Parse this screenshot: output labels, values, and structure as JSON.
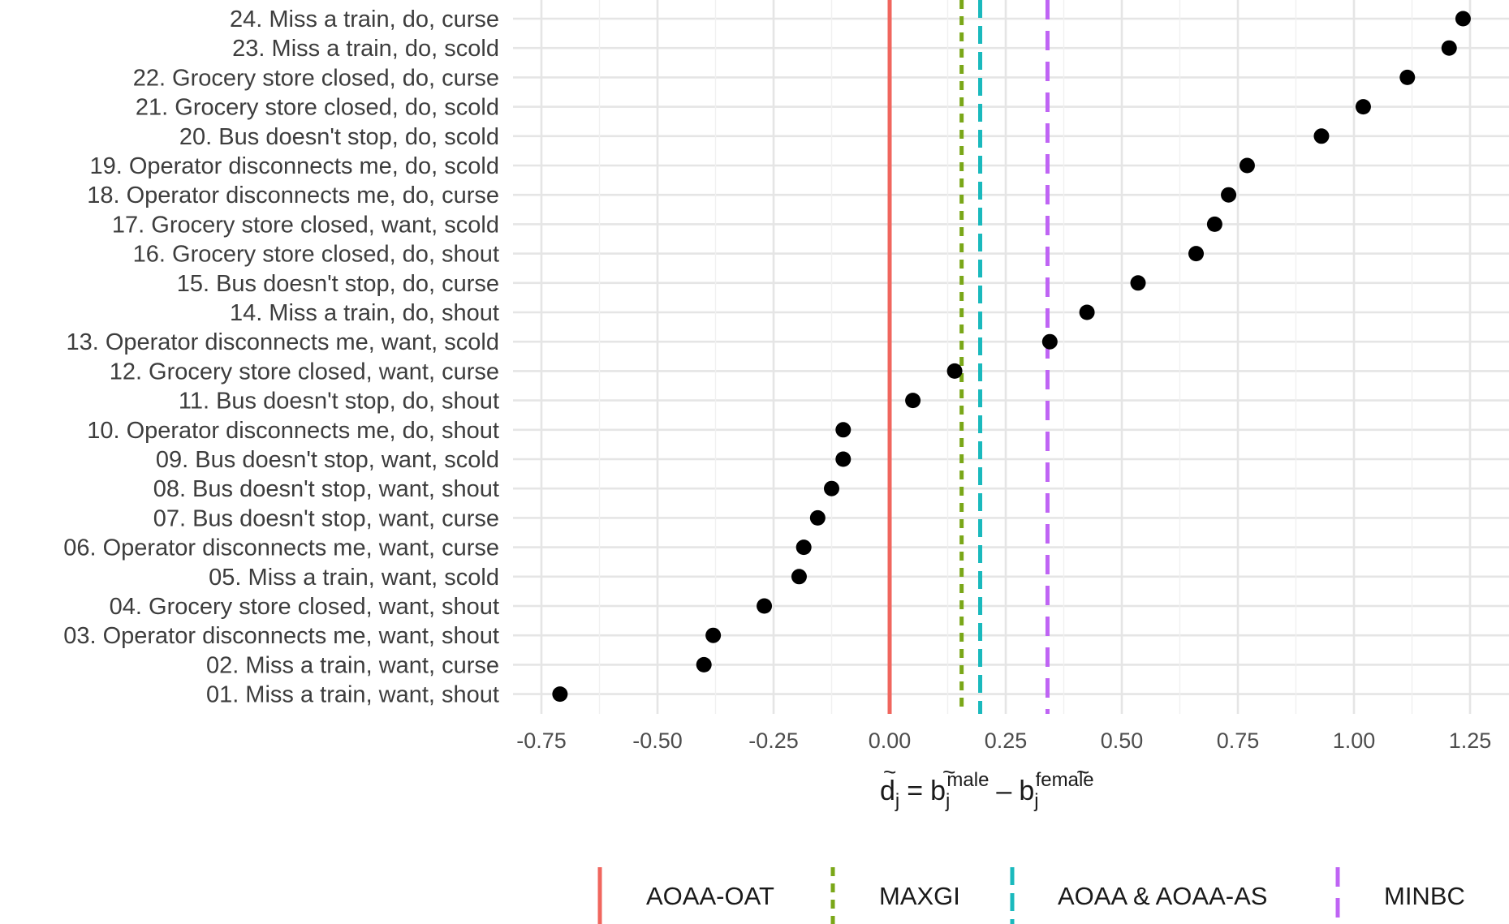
{
  "chart_data": {
    "type": "scatter",
    "xlabel_parts": {
      "lhs": "d",
      "lhs_sub": "j",
      "eq": "=",
      "term1": "b",
      "term1_sub": "j",
      "term1_sup": "male",
      "minus": "–",
      "term2": "b",
      "term2_sub": "j",
      "term2_sup": "female",
      "tilde": "~"
    },
    "xlim": [
      -0.82,
      1.3
    ],
    "xticks": [
      -0.75,
      -0.5,
      -0.25,
      0.0,
      0.25,
      0.5,
      0.75,
      1.0,
      1.25
    ],
    "xtick_labels": [
      "-0.75",
      "-0.50",
      "-0.25",
      "0.00",
      "0.25",
      "0.50",
      "0.75",
      "1.00",
      "1.25"
    ],
    "grid": true,
    "legend_position": "bottom",
    "point_color": "#000000",
    "categories": [
      "01. Miss a train, want, shout",
      "02. Miss a train, want, curse",
      "03. Operator disconnects me, want, shout",
      "04. Grocery store closed, want, shout",
      "05. Miss a train, want, scold",
      "06. Operator disconnects me, want, curse",
      "07. Bus doesn't stop, want, curse",
      "08. Bus doesn't stop, want, shout",
      "09. Bus doesn't stop, want, scold",
      "10. Operator disconnects me, do, shout",
      "11. Bus doesn't stop, do, shout",
      "12. Grocery store closed, want, curse",
      "13. Operator disconnects me, want, scold",
      "14. Miss a train, do, shout",
      "15. Bus doesn't stop, do, curse",
      "16. Grocery store closed, do, shout",
      "17. Grocery store closed, want, scold",
      "18. Operator disconnects me, do, curse",
      "19. Operator disconnects me, do, scold",
      "20. Bus doesn't stop, do, scold",
      "21. Grocery store closed, do, scold",
      "22. Grocery store closed, do, curse",
      "23. Miss a train, do, scold",
      "24. Miss a train, do, curse"
    ],
    "values": [
      -0.71,
      -0.4,
      -0.38,
      -0.27,
      -0.195,
      -0.185,
      -0.155,
      -0.125,
      -0.1,
      -0.1,
      0.05,
      0.14,
      0.345,
      0.425,
      0.535,
      0.66,
      0.7,
      0.73,
      0.77,
      0.93,
      1.02,
      1.115,
      1.205,
      1.235
    ],
    "vlines": [
      {
        "name": "AOAA-OAT",
        "x": 0.0,
        "color": "#f0665e",
        "dash": "solid"
      },
      {
        "name": "MAXGI",
        "x": 0.155,
        "color": "#7aa718",
        "dash": "dotted"
      },
      {
        "name": "AOAA & AOAA-AS",
        "x": 0.195,
        "color": "#1ab9bd",
        "dash": "dashed"
      },
      {
        "name": "MINBC",
        "x": 0.34,
        "color": "#bf64f4",
        "dash": "longdash"
      }
    ]
  }
}
